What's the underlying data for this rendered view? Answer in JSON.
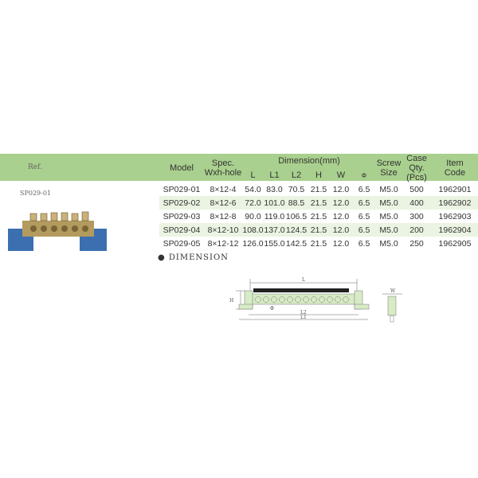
{
  "ref_label": "Ref.",
  "product_caption": "SP029-01",
  "table": {
    "headers": {
      "model": "Model",
      "spec": "Spec.",
      "spec2": "Wxh-hole",
      "dimension": "Dimension(mm)",
      "L": "L",
      "L1": "L1",
      "L2": "L2",
      "H": "H",
      "W": "W",
      "phi": "Φ",
      "screw": "Screw",
      "screw2": "Size",
      "case": "Case",
      "case2": "Qty.(Pcs)",
      "item": "Item",
      "item2": "Code"
    },
    "rows": [
      [
        "SP029-01",
        "8×12-4",
        "54.0",
        "83.0",
        "70.5",
        "21.5",
        "12.0",
        "6.5",
        "M5.0",
        "500",
        "1962901"
      ],
      [
        "SP029-02",
        "8×12-6",
        "72.0",
        "101.0",
        "88.5",
        "21.5",
        "12.0",
        "6.5",
        "M5.0",
        "400",
        "1962902"
      ],
      [
        "SP029-03",
        "8×12-8",
        "90.0",
        "119.0",
        "106.5",
        "21.5",
        "12.0",
        "6.5",
        "M5.0",
        "300",
        "1962903"
      ],
      [
        "SP029-04",
        "8×12-10",
        "108.0",
        "137.0",
        "124.5",
        "21.5",
        "12.0",
        "6.5",
        "M5.0",
        "200",
        "1962904"
      ],
      [
        "SP029-05",
        "8×12-12",
        "126.0",
        "155.0",
        "142.5",
        "21.5",
        "12.0",
        "6.5",
        "M5.0",
        "250",
        "1962905"
      ]
    ]
  },
  "dimension_title": "● DIMENSION",
  "drawing_labels": {
    "L": "L",
    "L1": "L1",
    "L2": "L2",
    "H": "H",
    "W": "W",
    "phi": "Φ"
  },
  "colors": {
    "header": "#a9d08e",
    "alt_row": "#ebf4e2",
    "insulator": "#3b6fb0",
    "brass": "#b39a5e"
  }
}
